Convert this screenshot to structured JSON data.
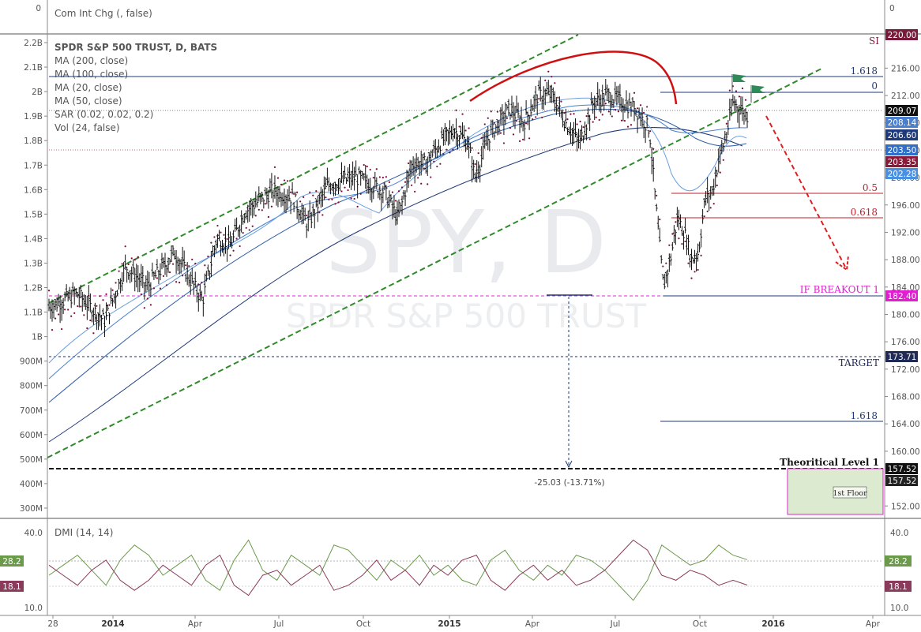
{
  "chart_data": {
    "type": "candlestick",
    "title": "SPDR S&P 500 TRUST, D, BATS",
    "watermark": {
      "ticker": "SPY, D",
      "name": "SPDR S&P 500 TRUST"
    },
    "panes": {
      "top": {
        "label": "Com Int Chg (, false)",
        "left_value": "0",
        "right_value": "0"
      },
      "main": {
        "indicators": [
          "MA (200, close)",
          "MA (100, close)",
          "MA (20, close)",
          "MA (50, close)",
          "SAR (0.02, 0.02, 0.2)",
          "Vol (24, false)"
        ],
        "price_ticks": [
          "216.00",
          "212.00",
          "208.00",
          "204.00",
          "200.00",
          "196.00",
          "192.00",
          "188.00",
          "184.00",
          "180.00",
          "176.00",
          "172.00",
          "168.00",
          "164.00",
          "160.00",
          "152.00"
        ],
        "volume_ticks": [
          "2.2B",
          "2.1B",
          "2B",
          "1.9B",
          "1.8B",
          "1.7B",
          "1.6B",
          "1.5B",
          "1.4B",
          "1.3B",
          "1.2B",
          "1.1B",
          "1B",
          "900M",
          "800M",
          "700M",
          "600M",
          "500M",
          "400M",
          "300M"
        ],
        "ylim": [
          150.3,
          221.0
        ],
        "price_badges": [
          {
            "label": "220.00",
            "color": "#7a1a3a"
          },
          {
            "label": "209.07",
            "color": "#111111"
          },
          {
            "label": "208.14",
            "color": "#4a7fd0"
          },
          {
            "label": "206.60",
            "color": "#1f3a7a"
          },
          {
            "label": "203.50",
            "color": "#2f6fc9"
          },
          {
            "label": "203.35",
            "color": "#8a1a3a"
          },
          {
            "label": "202.28",
            "color": "#4a90e2"
          },
          {
            "label": "182.40",
            "color": "#e020d0"
          },
          {
            "label": "173.71",
            "color": "#1f2a55"
          },
          {
            "label": "157.52",
            "color": "#111111"
          },
          {
            "label": "157.52",
            "color": "#222222"
          }
        ],
        "annotations": {
          "si": "SI",
          "fib_top": [
            "1.618",
            "0"
          ],
          "fib_mid": [
            "0.5",
            "0.618"
          ],
          "breakout": "IF BREAKOUT 1",
          "target": "TARGET",
          "fib_low": "1.618",
          "theoretical": "Theoritical Level 1",
          "measure": "-25.03 (-13.71%)",
          "floor": "1st Floor"
        }
      },
      "dmi": {
        "label": "DMI (14, 14)",
        "ticks": [
          "40.0",
          "10.0"
        ],
        "plus_di": "28.2",
        "minus_di": "18.1"
      }
    },
    "x_labels": [
      "28",
      "2014",
      "Apr",
      "Jul",
      "Oct",
      "2015",
      "Apr",
      "Jul",
      "Oct",
      "2016",
      "Apr"
    ],
    "x_label_bold": [
      "2014",
      "2015",
      "2016"
    ],
    "price_path": [
      [
        0,
        181
      ],
      [
        4,
        183
      ],
      [
        8,
        179
      ],
      [
        11,
        187
      ],
      [
        14,
        184
      ],
      [
        18,
        189
      ],
      [
        22,
        182
      ],
      [
        24,
        191
      ],
      [
        26,
        190
      ],
      [
        28,
        195
      ],
      [
        32,
        198
      ],
      [
        35,
        197
      ],
      [
        37,
        193
      ],
      [
        40,
        199
      ],
      [
        44,
        200
      ],
      [
        48,
        198
      ],
      [
        50,
        194
      ],
      [
        52,
        202
      ],
      [
        54,
        202
      ],
      [
        56,
        205
      ],
      [
        58,
        207
      ],
      [
        60,
        205
      ],
      [
        61,
        200
      ],
      [
        63,
        206
      ],
      [
        66,
        210
      ],
      [
        68,
        208
      ],
      [
        70,
        212
      ],
      [
        72,
        212
      ],
      [
        74,
        208
      ],
      [
        76,
        205
      ],
      [
        78,
        211
      ],
      [
        80,
        212
      ],
      [
        82,
        211
      ],
      [
        84,
        210
      ],
      [
        86,
        207
      ],
      [
        87,
        195
      ],
      [
        88,
        184
      ],
      [
        89,
        188
      ],
      [
        90,
        194
      ],
      [
        91,
        192
      ],
      [
        92,
        188
      ],
      [
        93,
        189
      ],
      [
        94,
        197
      ],
      [
        95,
        198
      ],
      [
        96,
        203
      ],
      [
        97,
        206
      ],
      [
        98,
        211
      ],
      [
        99,
        210
      ],
      [
        100,
        209.07
      ]
    ],
    "dmi_plus": [
      22,
      26,
      30,
      24,
      18,
      28,
      34,
      30,
      22,
      26,
      30,
      20,
      16,
      28,
      36,
      24,
      20,
      30,
      26,
      22,
      34,
      32,
      26,
      20,
      28,
      24,
      30,
      22,
      26,
      20,
      18,
      28,
      32,
      24,
      20,
      26,
      22,
      30,
      28,
      24,
      18,
      12,
      20,
      34,
      30,
      26,
      28,
      34,
      30,
      28.2
    ],
    "dmi_minus": [
      26,
      22,
      18,
      24,
      28,
      20,
      16,
      20,
      26,
      22,
      18,
      26,
      30,
      18,
      14,
      22,
      24,
      18,
      22,
      26,
      16,
      18,
      22,
      28,
      20,
      24,
      18,
      26,
      22,
      28,
      30,
      20,
      16,
      22,
      26,
      20,
      24,
      18,
      20,
      24,
      30,
      36,
      32,
      22,
      20,
      24,
      22,
      18,
      20,
      18.1
    ]
  }
}
